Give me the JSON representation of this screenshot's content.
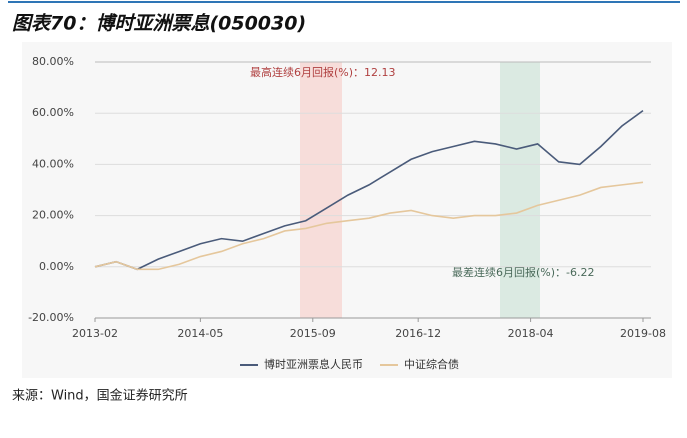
{
  "header": {
    "title": "图表70：博时亚洲票息(050030)"
  },
  "chart_data": {
    "type": "line",
    "x": [
      "2013-02",
      "2013-05",
      "2013-08",
      "2013-11",
      "2014-02",
      "2014-05",
      "2014-08",
      "2014-11",
      "2015-02",
      "2015-05",
      "2015-08",
      "2015-11",
      "2016-02",
      "2016-05",
      "2016-08",
      "2016-11",
      "2017-02",
      "2017-05",
      "2017-08",
      "2017-11",
      "2018-02",
      "2018-05",
      "2018-08",
      "2018-11",
      "2019-02",
      "2019-05",
      "2019-08"
    ],
    "series": [
      {
        "name": "博时亚洲票息人民币",
        "color": "#4a5b7a",
        "values": [
          0,
          2,
          -1,
          3,
          6,
          9,
          11,
          10,
          13,
          16,
          18,
          23,
          28,
          32,
          37,
          42,
          45,
          47,
          49,
          48,
          46,
          48,
          41,
          40,
          47,
          55,
          61
        ]
      },
      {
        "name": "中证综合债",
        "color": "#e5c79c",
        "values": [
          0,
          2,
          -1,
          -1,
          1,
          4,
          6,
          9,
          11,
          14,
          15,
          17,
          18,
          19,
          21,
          22,
          20,
          19,
          20,
          20,
          21,
          24,
          26,
          28,
          31,
          32,
          33
        ]
      }
    ],
    "ylim": [
      -20,
      80
    ],
    "yticks": [
      {
        "value": -20,
        "label": "-20.00%"
      },
      {
        "value": 0,
        "label": "0.00%"
      },
      {
        "value": 20,
        "label": "20.00%"
      },
      {
        "value": 40,
        "label": "40.00%"
      },
      {
        "value": 60,
        "label": "60.00%"
      },
      {
        "value": 80,
        "label": "80.00%"
      }
    ],
    "xticks": [
      "2013-02",
      "2014-05",
      "2015-09",
      "2016-12",
      "2018-04",
      "2019-08"
    ],
    "annotations": [
      "最高连续6月回报(%)：12.13",
      "最差连续6月回报(%)：-6.22"
    ],
    "grid": true
  },
  "footer": {
    "source": "来源：Wind，国金证券研究所"
  }
}
